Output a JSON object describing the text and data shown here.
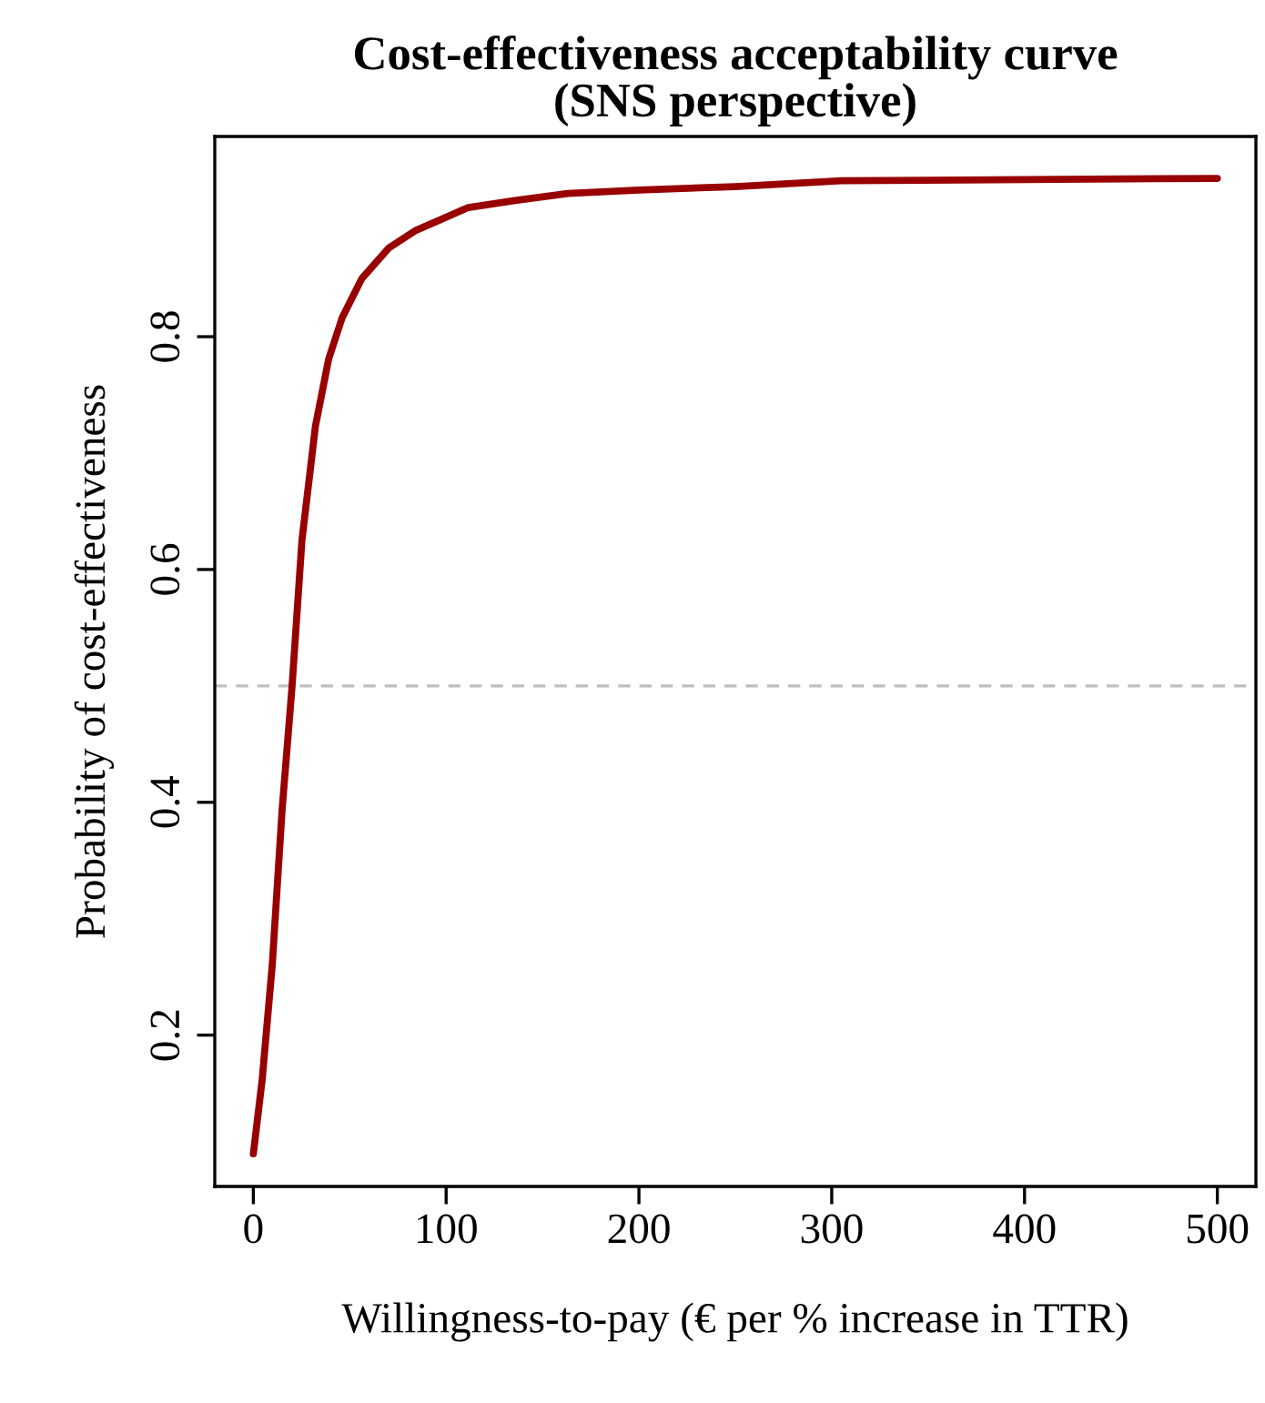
{
  "chart_data": {
    "type": "line",
    "title": "Cost-effectiveness acceptability curve\n(SNS perspective)",
    "xlabel": "Willingness-to-pay (€ per % increase in TTR)",
    "ylabel": "Probability of cost-effectiveness",
    "series": [
      {
        "color": "#990000",
        "x": [
          0,
          4.6,
          9.8,
          14.9,
          20.1,
          25.2,
          32.2,
          39.1,
          46,
          56.3,
          70.1,
          83.9,
          97.7,
          111.5,
          135.7,
          163.2,
          200,
          250,
          305,
          400,
          500
        ],
        "values": [
          0.098,
          0.162,
          0.26,
          0.393,
          0.5,
          0.625,
          0.723,
          0.781,
          0.816,
          0.85,
          0.876,
          0.891,
          0.901,
          0.911,
          0.917,
          0.923,
          0.926,
          0.929,
          0.934,
          0.935,
          0.936
        ]
      }
    ],
    "xlim": [
      -20,
      520
    ],
    "ylim": [
      0.07,
      0.972
    ],
    "xticks": [
      0,
      100,
      200,
      300,
      400,
      500
    ],
    "yticks": [
      0.2,
      0.4,
      0.6,
      0.8
    ],
    "ref_lines": [
      {
        "axis": "y",
        "value": 0.5,
        "color": "#bebebe",
        "line_style": "dashed"
      }
    ],
    "grid": false,
    "legend": false
  }
}
